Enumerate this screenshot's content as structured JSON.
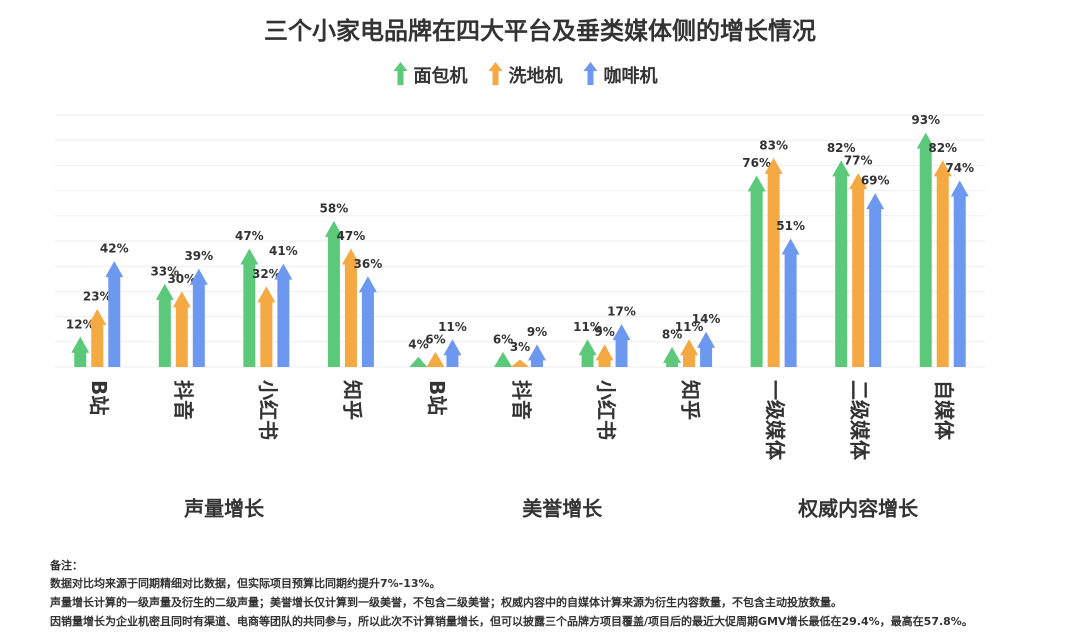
{
  "chart_data": {
    "type": "arrow-bar",
    "title": "三个小家电品牌在四大平台及垂类媒体侧的增长情况",
    "groups": [
      {
        "name": "声量增长",
        "categories": [
          "B站",
          "抖音",
          "小红书",
          "知乎"
        ]
      },
      {
        "name": "美誉增长",
        "categories": [
          "B站",
          "抖音",
          "小红书",
          "知乎"
        ]
      },
      {
        "name": "权威内容增长",
        "categories": [
          "一级媒体",
          "二级媒体",
          "自媒体"
        ]
      }
    ],
    "series": [
      {
        "name": "面包机",
        "color": "#5cc97a",
        "values": [
          12,
          33,
          47,
          58,
          4,
          6,
          11,
          8,
          76,
          82,
          93
        ],
        "value_labels": [
          "12%",
          "33%",
          "47%",
          "58%",
          "4%",
          "6%",
          "11%",
          "8%",
          "76%",
          "82%",
          "93%"
        ]
      },
      {
        "name": "洗地机",
        "color": "#f5a942",
        "values": [
          23,
          30,
          32,
          47,
          6,
          3,
          9,
          11,
          83,
          77,
          82
        ],
        "value_labels": [
          "23%",
          "30%",
          "32%",
          "47%",
          "6%",
          "3%",
          "9%",
          "11%",
          "83%",
          "77%",
          "82%"
        ]
      },
      {
        "name": "咖啡机",
        "color": "#6d98f0",
        "values": [
          42,
          39,
          41,
          36,
          11,
          9,
          17,
          14,
          51,
          69,
          74
        ],
        "value_labels": [
          "42%",
          "39%",
          "41%",
          "36%",
          "11%",
          "9%",
          "17%",
          "14%",
          "51%",
          "69%",
          "74%"
        ]
      }
    ],
    "ylim": [
      0,
      100
    ],
    "grid": true
  },
  "notes": {
    "title": "备注：",
    "lines": [
      "数据对比均来源于同期精细对比数据，但实际项目预算比同期约提升7%-13%。",
      "声量增长计算的一级声量及衍生的二级声量；美誉增长仅计算到一级美誉，不包含二级美誉；权威内容中的自媒体计算来源为衍生内容数量，不包含主动投放数量。",
      "因销量增长为企业机密且同时有渠道、电商等团队的共同参与，所以此次不计算销量增长，但可以披露三个品牌方项目覆盖/项目后的最近大促周期GMV增长最低在29.4%，最高在57.8%。"
    ]
  }
}
